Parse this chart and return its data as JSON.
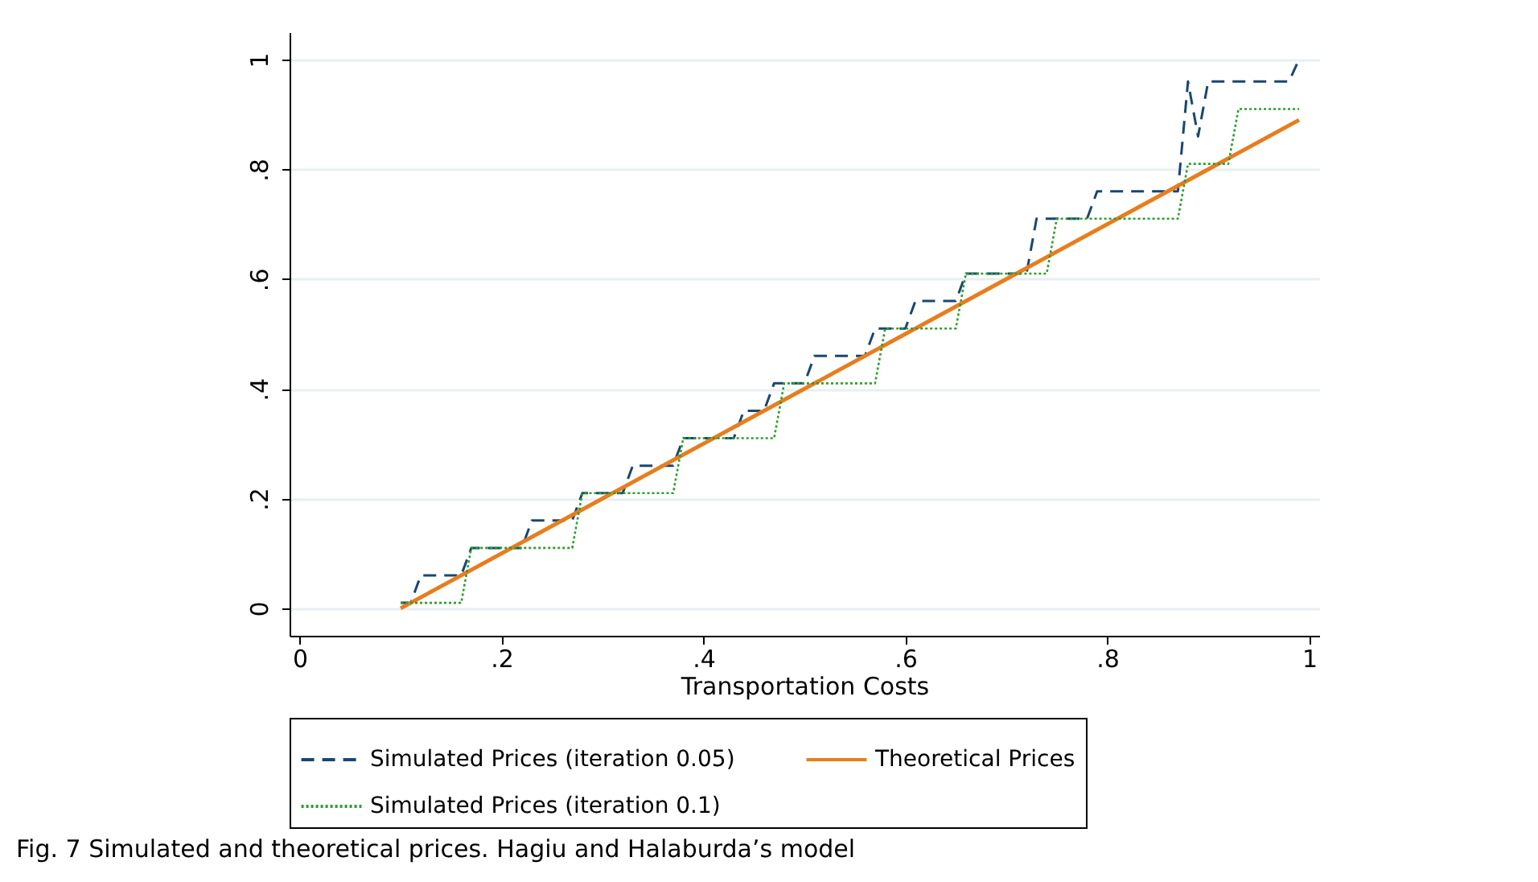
{
  "chart_data": {
    "type": "line",
    "xlabel": "Transportation Costs",
    "annotations": [
      "Fig. 7  Simulated and theoretical prices. Hagiu and Halaburda’s model"
    ],
    "xlim": [
      -0.01,
      1.01
    ],
    "ylim": [
      -0.05,
      1.05
    ],
    "xticks": [
      0,
      {
        "value": 0.2,
        "label": ".2"
      },
      {
        "value": 0.4,
        "label": ".4"
      },
      {
        "value": 0.6,
        "label": ".6"
      },
      {
        "value": 0.8,
        "label": ".8"
      },
      1
    ],
    "yticks": [
      0,
      {
        "value": 0.2,
        "label": ".2"
      },
      {
        "value": 0.4,
        "label": ".4"
      },
      {
        "value": 0.6,
        "label": ".6"
      },
      {
        "value": 0.8,
        "label": ".8"
      },
      1
    ],
    "grid": "y",
    "legend": "bottom",
    "series": [
      {
        "name": "Simulated Prices (iteration 0.05)",
        "color": "#1a476f",
        "line_style": "dashed",
        "x": [
          0.1,
          0.11,
          0.12,
          0.16,
          0.17,
          0.22,
          0.23,
          0.27,
          0.28,
          0.32,
          0.33,
          0.37,
          0.38,
          0.43,
          0.44,
          0.46,
          0.47,
          0.5,
          0.51,
          0.56,
          0.57,
          0.6,
          0.61,
          0.65,
          0.66,
          0.72,
          0.73,
          0.78,
          0.79,
          0.87,
          0.88,
          0.89,
          0.9,
          0.98,
          0.99
        ],
        "values": [
          0.01,
          0.01,
          0.06,
          0.06,
          0.11,
          0.11,
          0.16,
          0.16,
          0.21,
          0.21,
          0.26,
          0.26,
          0.31,
          0.31,
          0.36,
          0.36,
          0.41,
          0.41,
          0.46,
          0.46,
          0.51,
          0.51,
          0.56,
          0.56,
          0.61,
          0.61,
          0.71,
          0.71,
          0.76,
          0.76,
          0.96,
          0.86,
          0.96,
          0.96,
          1.0
        ]
      },
      {
        "name": "Theoretical Prices",
        "color": "#e87d1e",
        "line_style": "solid",
        "x": [
          0.1,
          0.99
        ],
        "values": [
          0.0,
          0.89
        ]
      },
      {
        "name": "Simulated Prices (iteration 0.1)",
        "color": "#2e9e2e",
        "line_style": "dotted",
        "x": [
          0.1,
          0.16,
          0.17,
          0.27,
          0.28,
          0.37,
          0.38,
          0.47,
          0.48,
          0.57,
          0.58,
          0.65,
          0.66,
          0.74,
          0.75,
          0.87,
          0.88,
          0.92,
          0.93,
          0.99
        ],
        "values": [
          0.01,
          0.01,
          0.11,
          0.11,
          0.21,
          0.21,
          0.31,
          0.31,
          0.41,
          0.41,
          0.51,
          0.51,
          0.61,
          0.61,
          0.71,
          0.71,
          0.81,
          0.81,
          0.91,
          0.91
        ]
      }
    ]
  }
}
